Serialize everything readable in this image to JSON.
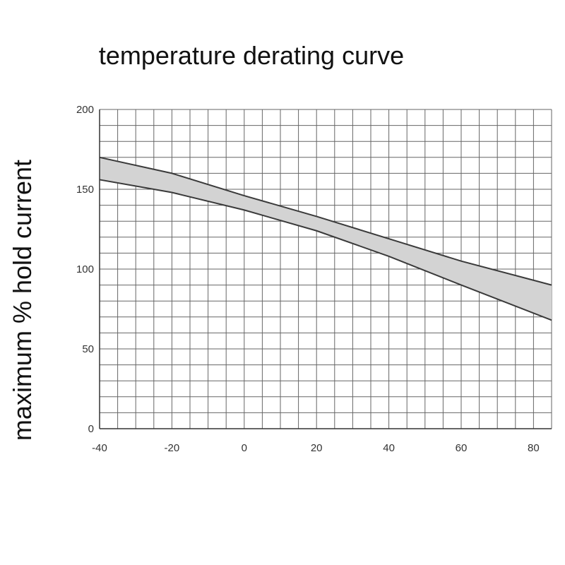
{
  "chart_data": {
    "type": "area",
    "title": "temperature derating curve",
    "xlabel": "",
    "ylabel": "maximum % hold current",
    "xlim": [
      -40,
      85
    ],
    "ylim": [
      0,
      200
    ],
    "x_ticks": [
      -40,
      -20,
      0,
      20,
      40,
      60,
      80
    ],
    "y_ticks": [
      0,
      50,
      100,
      150,
      200
    ],
    "grid": true,
    "series": [
      {
        "x": [
          -40,
          -20,
          0,
          20,
          40,
          60,
          85
        ],
        "values": [
          170,
          160,
          146,
          133,
          119,
          105,
          90
        ]
      },
      {
        "x": [
          -40,
          -20,
          0,
          20,
          40,
          60,
          85
        ],
        "values": [
          156,
          148,
          137,
          124,
          108,
          90,
          68
        ]
      }
    ],
    "band_fill": "#d3d3d3",
    "line_color": "#3a3a3a",
    "grid_color": "#666666"
  }
}
